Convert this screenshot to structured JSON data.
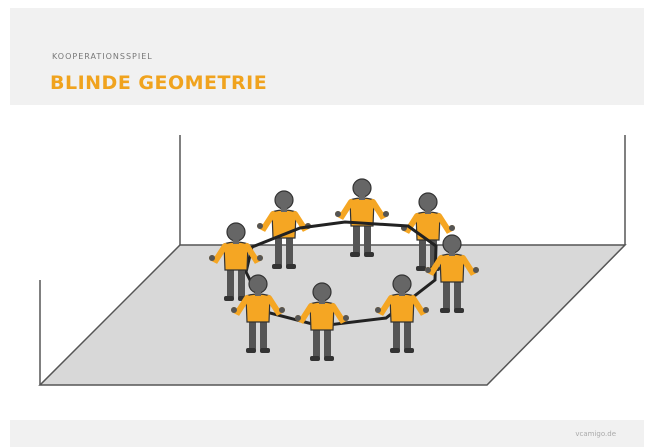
{
  "header": {
    "kicker": "KOOPERATIONSSPIEL",
    "title": "BLINDE GEOMETRIE"
  },
  "footer": {
    "source": "vcamigo.de"
  }
}
